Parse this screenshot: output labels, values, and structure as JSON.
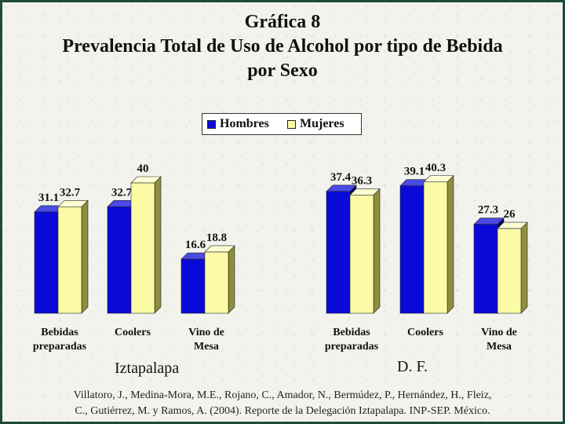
{
  "title_lines": [
    "Gráfica 8",
    "Prevalencia Total de Uso de Alcohol por tipo de Bebida",
    "por Sexo"
  ],
  "legend": [
    {
      "label": "Hombres",
      "color": "#0a0ad8"
    },
    {
      "label": "Mujeres",
      "color": "#fbfba6"
    }
  ],
  "chart_data": {
    "type": "bar",
    "title": "Gráfica 8 Prevalencia Total de Uso de Alcohol por tipo de Bebida por Sexo",
    "series_names": [
      "Hombres",
      "Mujeres"
    ],
    "colors": {
      "Hombres": "#0a0ad8",
      "Mujeres": "#fbfba6"
    },
    "ylim": [
      0,
      40
    ],
    "grid": false,
    "legend_position": "top-center",
    "groups": [
      {
        "name": "Iztapalapa",
        "categories": [
          [
            "Bebidas",
            "preparadas"
          ],
          [
            "Coolers"
          ],
          [
            "Vino de",
            "Mesa"
          ]
        ],
        "series": [
          {
            "name": "Hombres",
            "values": [
              31.1,
              32.7,
              16.6
            ]
          },
          {
            "name": "Mujeres",
            "values": [
              32.7,
              40,
              18.8
            ]
          }
        ]
      },
      {
        "name": "D. F.",
        "categories": [
          [
            "Bebidas",
            "preparadas"
          ],
          [
            "Coolers"
          ],
          [
            "Vino de",
            "Mesa"
          ]
        ],
        "series": [
          {
            "name": "Hombres",
            "values": [
              37.4,
              39.1,
              27.3
            ]
          },
          {
            "name": "Mujeres",
            "values": [
              36.3,
              40.3,
              26
            ]
          }
        ]
      }
    ]
  },
  "citation_lines": [
    "Villatoro, J., Medina-Mora, M.E., Rojano, C., Amador, N., Bermúdez, P., Hernández, H., Fleiz,",
    "C., Gutiérrez, M. y Ramos, A. (2004). Reporte de la Delegación Iztapalapa. INP-SEP. México."
  ]
}
